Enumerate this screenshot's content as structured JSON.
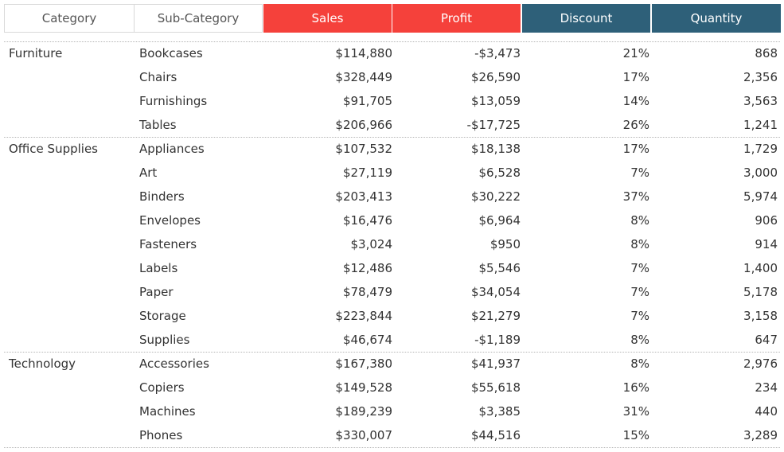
{
  "headers": {
    "category": "Category",
    "sub_category": "Sub-Category",
    "sales": "Sales",
    "profit": "Profit",
    "discount": "Discount",
    "quantity": "Quantity"
  },
  "colors": {
    "sales_header": "#f5413b",
    "profit_header": "#f5413b",
    "discount_header": "#2e6079",
    "quantity_header": "#2e6079"
  },
  "groups": [
    {
      "category": "Furniture",
      "rows": [
        {
          "sub": "Bookcases",
          "sales": "$114,880",
          "profit": "-$3,473",
          "discount": "21%",
          "quantity": "868"
        },
        {
          "sub": "Chairs",
          "sales": "$328,449",
          "profit": "$26,590",
          "discount": "17%",
          "quantity": "2,356"
        },
        {
          "sub": "Furnishings",
          "sales": "$91,705",
          "profit": "$13,059",
          "discount": "14%",
          "quantity": "3,563"
        },
        {
          "sub": "Tables",
          "sales": "$206,966",
          "profit": "-$17,725",
          "discount": "26%",
          "quantity": "1,241"
        }
      ]
    },
    {
      "category": "Office Supplies",
      "rows": [
        {
          "sub": "Appliances",
          "sales": "$107,532",
          "profit": "$18,138",
          "discount": "17%",
          "quantity": "1,729"
        },
        {
          "sub": "Art",
          "sales": "$27,119",
          "profit": "$6,528",
          "discount": "7%",
          "quantity": "3,000"
        },
        {
          "sub": "Binders",
          "sales": "$203,413",
          "profit": "$30,222",
          "discount": "37%",
          "quantity": "5,974"
        },
        {
          "sub": "Envelopes",
          "sales": "$16,476",
          "profit": "$6,964",
          "discount": "8%",
          "quantity": "906"
        },
        {
          "sub": "Fasteners",
          "sales": "$3,024",
          "profit": "$950",
          "discount": "8%",
          "quantity": "914"
        },
        {
          "sub": "Labels",
          "sales": "$12,486",
          "profit": "$5,546",
          "discount": "7%",
          "quantity": "1,400"
        },
        {
          "sub": "Paper",
          "sales": "$78,479",
          "profit": "$34,054",
          "discount": "7%",
          "quantity": "5,178"
        },
        {
          "sub": "Storage",
          "sales": "$223,844",
          "profit": "$21,279",
          "discount": "7%",
          "quantity": "3,158"
        },
        {
          "sub": "Supplies",
          "sales": "$46,674",
          "profit": "-$1,189",
          "discount": "8%",
          "quantity": "647"
        }
      ]
    },
    {
      "category": "Technology",
      "rows": [
        {
          "sub": "Accessories",
          "sales": "$167,380",
          "profit": "$41,937",
          "discount": "8%",
          "quantity": "2,976"
        },
        {
          "sub": "Copiers",
          "sales": "$149,528",
          "profit": "$55,618",
          "discount": "16%",
          "quantity": "234"
        },
        {
          "sub": "Machines",
          "sales": "$189,239",
          "profit": "$3,385",
          "discount": "31%",
          "quantity": "440"
        },
        {
          "sub": "Phones",
          "sales": "$330,007",
          "profit": "$44,516",
          "discount": "15%",
          "quantity": "3,289"
        }
      ]
    }
  ]
}
